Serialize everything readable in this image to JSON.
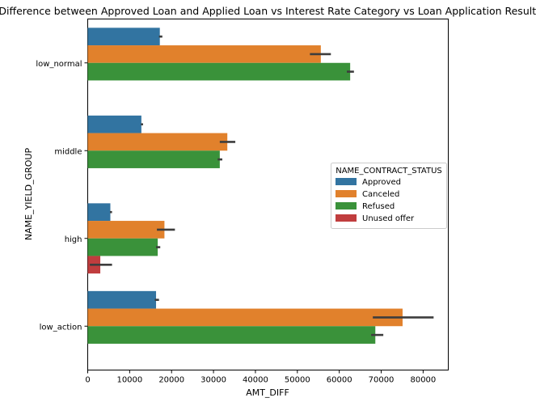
{
  "chart_data": {
    "type": "bar",
    "orientation": "horizontal",
    "title": "Difference between Approved Loan and Applied Loan vs Interest Rate Category vs Loan Application Results",
    "xlabel": "AMT_DIFF",
    "ylabel": "NAME_YIELD_GROUP",
    "categories": [
      "low_normal",
      "middle",
      "high",
      "low_action"
    ],
    "xlim": [
      0,
      86000
    ],
    "xticks": [
      0,
      10000,
      20000,
      30000,
      40000,
      50000,
      60000,
      70000,
      80000
    ],
    "xtick_labels": [
      "0",
      "10000",
      "20000",
      "30000",
      "40000",
      "50000",
      "60000",
      "70000",
      "80000"
    ],
    "grid": false,
    "legend": {
      "title": "NAME_CONTRACT_STATUS",
      "placement": "center-right"
    },
    "series": [
      {
        "name": "Approved",
        "color": "#3274a1",
        "values": [
          17200,
          12800,
          5400,
          16300
        ],
        "err_low": [
          17000,
          12700,
          5300,
          16000
        ],
        "err_high": [
          17800,
          13200,
          5800,
          17000
        ]
      },
      {
        "name": "Canceled",
        "color": "#e1812c",
        "values": [
          55600,
          33300,
          18300,
          75100
        ],
        "err_low": [
          53000,
          31500,
          16500,
          68000
        ],
        "err_high": [
          58000,
          35200,
          20800,
          82500
        ]
      },
      {
        "name": "Refused",
        "color": "#3a923a",
        "values": [
          62600,
          31500,
          16700,
          68600
        ],
        "err_low": [
          61800,
          31000,
          16300,
          67600
        ],
        "err_high": [
          63500,
          32100,
          17300,
          70500
        ]
      },
      {
        "name": "Unused offer",
        "color": "#c03d3e",
        "values": [
          null,
          null,
          3000,
          null
        ],
        "err_low": [
          null,
          null,
          500,
          null
        ],
        "err_high": [
          null,
          null,
          5800,
          null
        ]
      }
    ]
  }
}
